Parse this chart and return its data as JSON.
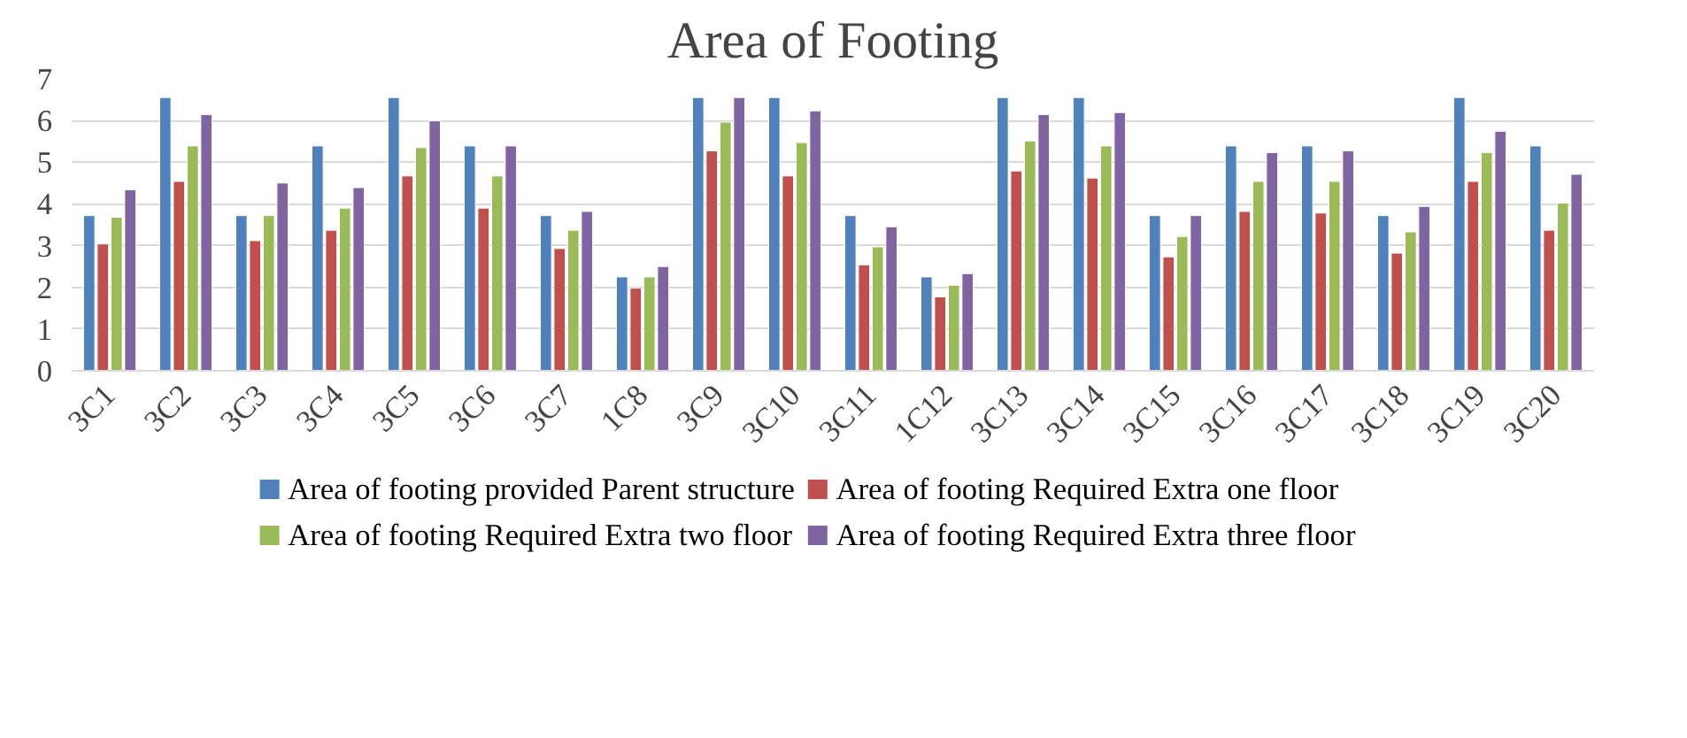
{
  "chart_data": {
    "type": "bar",
    "title": "Area of Footing",
    "categories": [
      "3C1",
      "3C2",
      "3C3",
      "3C4",
      "3C5",
      "3C6",
      "3C7",
      "1C8",
      "3C9",
      "3C10",
      "3C11",
      "1C12",
      "3C13",
      "3C14",
      "3C15",
      "3C16",
      "3C17",
      "3C18",
      "3C19",
      "3C20"
    ],
    "series": [
      {
        "name": "Area of footing provided Parent structure",
        "color": "#4f81bd",
        "values": [
          3.72,
          6.55,
          3.72,
          5.39,
          6.55,
          5.39,
          3.72,
          2.25,
          6.55,
          6.55,
          3.72,
          2.25,
          6.55,
          6.55,
          3.72,
          5.39,
          5.39,
          3.72,
          6.55,
          5.39
        ]
      },
      {
        "name": "Area of footing Required Extra one floor",
        "color": "#c0504d",
        "values": [
          3.04,
          4.54,
          3.12,
          3.37,
          4.67,
          3.9,
          2.93,
          1.98,
          5.27,
          4.67,
          2.54,
          1.77,
          4.79,
          4.62,
          2.73,
          3.82,
          3.78,
          2.82,
          4.54,
          3.37
        ]
      },
      {
        "name": "Area of footing Required Extra two floor",
        "color": "#9bbb59",
        "values": [
          3.68,
          5.39,
          3.72,
          3.9,
          5.35,
          4.67,
          3.37,
          2.25,
          5.96,
          5.47,
          2.97,
          2.05,
          5.51,
          5.39,
          3.22,
          4.54,
          4.54,
          3.33,
          5.23,
          4.02
        ]
      },
      {
        "name": "Area of footing Required Extra three floor",
        "color": "#8064a2",
        "values": [
          4.34,
          6.14,
          4.5,
          4.39,
          5.99,
          5.39,
          3.82,
          2.5,
          6.55,
          6.23,
          3.45,
          2.33,
          6.14,
          6.19,
          3.72,
          5.23,
          5.27,
          3.94,
          5.74,
          4.71
        ]
      }
    ],
    "ylim": [
      0,
      7
    ],
    "yticks": [
      0,
      1,
      2,
      3,
      4,
      5,
      6,
      7
    ],
    "grid": "y",
    "legend": "bottom"
  }
}
